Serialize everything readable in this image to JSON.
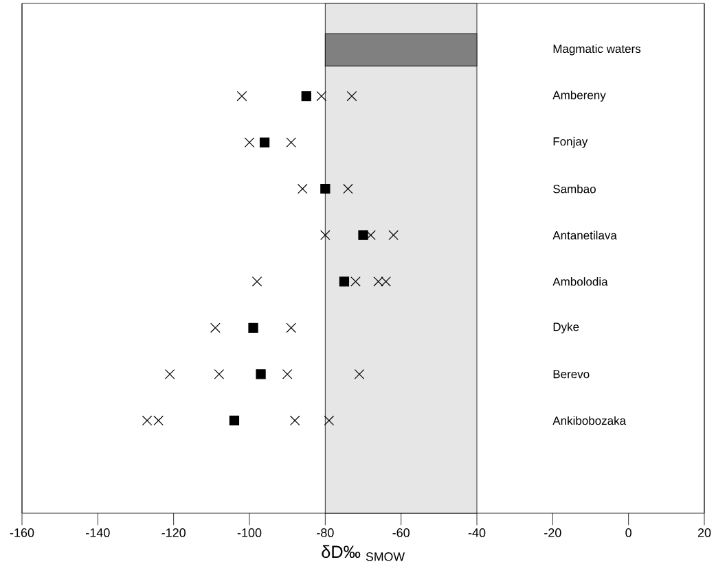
{
  "chart_data": {
    "type": "scatter",
    "orientation": "horizontal",
    "xlabel": "δD‰ $_{SMOW}$",
    "xlim": [
      -160,
      20
    ],
    "xticks": [
      -160,
      -140,
      -120,
      -100,
      -80,
      -60,
      -40,
      -20,
      0,
      20
    ],
    "categories": [
      "Magmatic waters",
      "Ambereny",
      "Fonjay",
      "Sambao",
      "Antanetilava",
      "Ambolodia",
      "Dyke",
      "Berevo",
      "Ankibobozaka"
    ],
    "bands": [
      {
        "axis": "x",
        "from": -80,
        "to": -40,
        "color": "#e6e6e6"
      }
    ],
    "series": [
      {
        "type": "bar",
        "color": "#808080",
        "base": [
          -80,
          null,
          null,
          null,
          null,
          null,
          null,
          null,
          null
        ],
        "values": [
          40,
          null,
          null,
          null,
          null,
          null,
          null,
          null,
          null
        ]
      },
      {
        "marker": "square",
        "color": "#000000",
        "values": [
          null,
          -85,
          -96,
          -80,
          -70,
          -75,
          -99,
          -97,
          -104
        ]
      },
      {
        "marker": "cross",
        "color": "#000000",
        "values": [
          null,
          -102,
          -100,
          -86,
          -80,
          -98,
          -109,
          -121,
          -127
        ]
      },
      {
        "marker": "cross",
        "color": "#000000",
        "values": [
          null,
          -81,
          -89,
          -74,
          -68,
          -72,
          -89,
          -108,
          -124
        ]
      },
      {
        "marker": "cross",
        "color": "#000000",
        "values": [
          null,
          -73,
          null,
          null,
          -62,
          -66,
          null,
          -90,
          -88
        ]
      },
      {
        "marker": "cross",
        "color": "#000000",
        "values": [
          null,
          null,
          null,
          null,
          null,
          -64,
          null,
          -71,
          -79
        ]
      }
    ]
  }
}
